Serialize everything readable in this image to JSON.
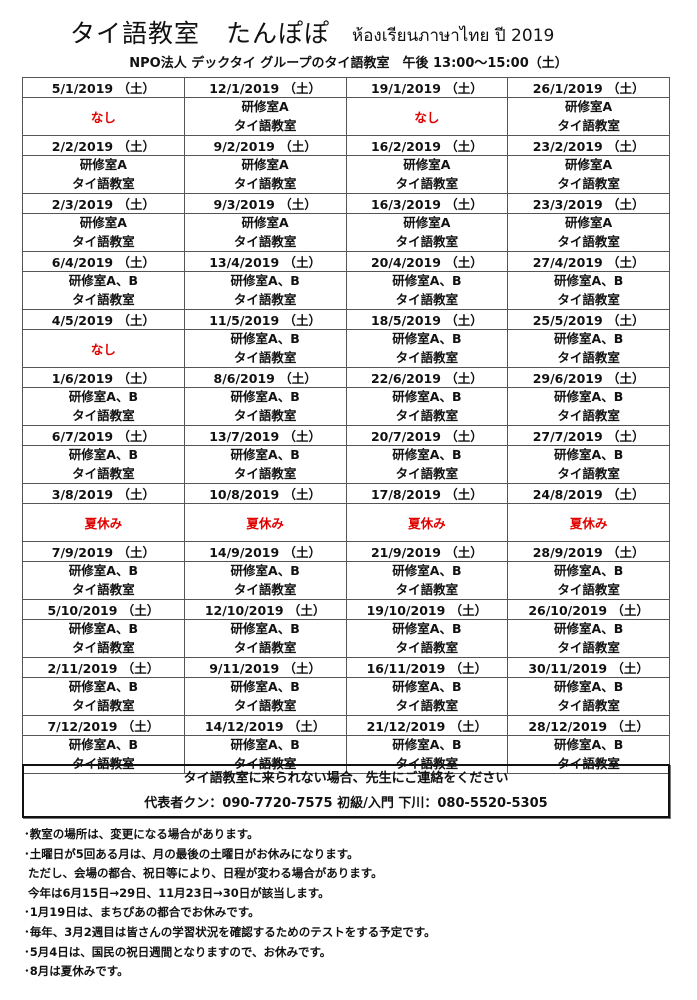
{
  "header": {
    "title": "タイ語教室　たんぽぽ",
    "thai_title": "ห้องเรียนภาษาไทย ปี 2019",
    "subtitle": "NPO法人 デックタイ グループのタイ語教室　午後 13:00～15:00（土）"
  },
  "colors": {
    "closed": "#e00000",
    "text": "#111111"
  },
  "schedule": [
    [
      {
        "date": "5/1/2019 （土）",
        "closed": "なし"
      },
      {
        "date": "12/1/2019 （土）",
        "room": "研修室A",
        "class": "タイ語教室"
      },
      {
        "date": "19/1/2019 （土）",
        "closed": "なし"
      },
      {
        "date": "26/1/2019 （土）",
        "room": "研修室A",
        "class": "タイ語教室"
      }
    ],
    [
      {
        "date": "2/2/2019 （土）",
        "room": "研修室A",
        "class": "タイ語教室"
      },
      {
        "date": "9/2/2019 （土）",
        "room": "研修室A",
        "class": "タイ語教室"
      },
      {
        "date": "16/2/2019 （土）",
        "room": "研修室A",
        "class": "タイ語教室"
      },
      {
        "date": "23/2/2019 （土）",
        "room": "研修室A",
        "class": "タイ語教室"
      }
    ],
    [
      {
        "date": "2/3/2019 （土）",
        "room": "研修室A",
        "class": "タイ語教室"
      },
      {
        "date": "9/3/2019 （土）",
        "room": "研修室A",
        "class": "タイ語教室"
      },
      {
        "date": "16/3/2019 （土）",
        "room": "研修室A",
        "class": "タイ語教室"
      },
      {
        "date": "23/3/2019 （土）",
        "room": "研修室A",
        "class": "タイ語教室"
      }
    ],
    [
      {
        "date": "6/4/2019 （土）",
        "room": "研修室A、B",
        "class": "タイ語教室"
      },
      {
        "date": "13/4/2019 （土）",
        "room": "研修室A、B",
        "class": "タイ語教室"
      },
      {
        "date": "20/4/2019 （土）",
        "room": "研修室A、B",
        "class": "タイ語教室"
      },
      {
        "date": "27/4/2019 （土）",
        "room": "研修室A、B",
        "class": "タイ語教室"
      }
    ],
    [
      {
        "date": "4/5/2019 （土）",
        "closed": "なし"
      },
      {
        "date": "11/5/2019 （土）",
        "room": "研修室A、B",
        "class": "タイ語教室"
      },
      {
        "date": "18/5/2019 （土）",
        "room": "研修室A、B",
        "class": "タイ語教室"
      },
      {
        "date": "25/5/2019 （土）",
        "room": "研修室A、B",
        "class": "タイ語教室"
      }
    ],
    [
      {
        "date": "1/6/2019 （土）",
        "room": "研修室A、B",
        "class": "タイ語教室"
      },
      {
        "date": "8/6/2019 （土）",
        "room": "研修室A、B",
        "class": "タイ語教室"
      },
      {
        "date": "22/6/2019 （土）",
        "room": "研修室A、B",
        "class": "タイ語教室"
      },
      {
        "date": "29/6/2019 （土）",
        "room": "研修室A、B",
        "class": "タイ語教室"
      }
    ],
    [
      {
        "date": "6/7/2019 （土）",
        "room": "研修室A、B",
        "class": "タイ語教室"
      },
      {
        "date": "13/7/2019 （土）",
        "room": "研修室A、B",
        "class": "タイ語教室"
      },
      {
        "date": "20/7/2019 （土）",
        "room": "研修室A、B",
        "class": "タイ語教室"
      },
      {
        "date": "27/7/2019 （土）",
        "room": "研修室A、B",
        "class": "タイ語教室"
      }
    ],
    [
      {
        "date": "3/8/2019 （土）",
        "closed": "夏休み"
      },
      {
        "date": "10/8/2019 （土）",
        "closed": "夏休み"
      },
      {
        "date": "17/8/2019 （土）",
        "closed": "夏休み"
      },
      {
        "date": "24/8/2019 （土）",
        "closed": "夏休み"
      }
    ],
    [
      {
        "date": "7/9/2019 （土）",
        "room": "研修室A、B",
        "class": "タイ語教室"
      },
      {
        "date": "14/9/2019 （土）",
        "room": "研修室A、B",
        "class": "タイ語教室"
      },
      {
        "date": "21/9/2019 （土）",
        "room": "研修室A、B",
        "class": "タイ語教室"
      },
      {
        "date": "28/9/2019 （土）",
        "room": "研修室A、B",
        "class": "タイ語教室"
      }
    ],
    [
      {
        "date": "5/10/2019 （土）",
        "room": "研修室A、B",
        "class": "タイ語教室"
      },
      {
        "date": "12/10/2019 （土）",
        "room": "研修室A、B",
        "class": "タイ語教室"
      },
      {
        "date": "19/10/2019 （土）",
        "room": "研修室A、B",
        "class": "タイ語教室"
      },
      {
        "date": "26/10/2019 （土）",
        "room": "研修室A、B",
        "class": "タイ語教室"
      }
    ],
    [
      {
        "date": "2/11/2019 （土）",
        "room": "研修室A、B",
        "class": "タイ語教室"
      },
      {
        "date": "9/11/2019 （土）",
        "room": "研修室A、B",
        "class": "タイ語教室"
      },
      {
        "date": "16/11/2019 （土）",
        "room": "研修室A、B",
        "class": "タイ語教室"
      },
      {
        "date": "30/11/2019 （土）",
        "room": "研修室A、B",
        "class": "タイ語教室"
      }
    ],
    [
      {
        "date": "7/12/2019 （土）",
        "room": "研修室A、B",
        "class": "タイ語教室"
      },
      {
        "date": "14/12/2019 （土）",
        "room": "研修室A、B",
        "class": "タイ語教室"
      },
      {
        "date": "21/12/2019 （土）",
        "room": "研修室A、B",
        "class": "タイ語教室"
      },
      {
        "date": "28/12/2019 （土）",
        "room": "研修室A、B",
        "class": "タイ語教室"
      }
    ]
  ],
  "notice": {
    "line1": "タイ語教室に来られない場合、先生にご連絡をください",
    "line2": "代表者クン：090-7720-7575  初級/入門 下川：080-5520-5305"
  },
  "notes": [
    "･教室の場所は、変更になる場合があります。",
    "･土曜日が5回ある月は、月の最後の土曜日がお休みになります。",
    " ただし、会場の都合、祝日等により、日程が変わる場合があります。",
    " 今年は6月15日→29日、11月23日→30日が該当します。",
    "･1月19日は、まちぴあの都合でお休みです。",
    "･毎年、3月2週目は皆さんの学習状況を確認するためのテストをする予定です。",
    "･5月4日は、国民の祝日週間となりますので、お休みです。",
    "･8月は夏休みです。"
  ]
}
